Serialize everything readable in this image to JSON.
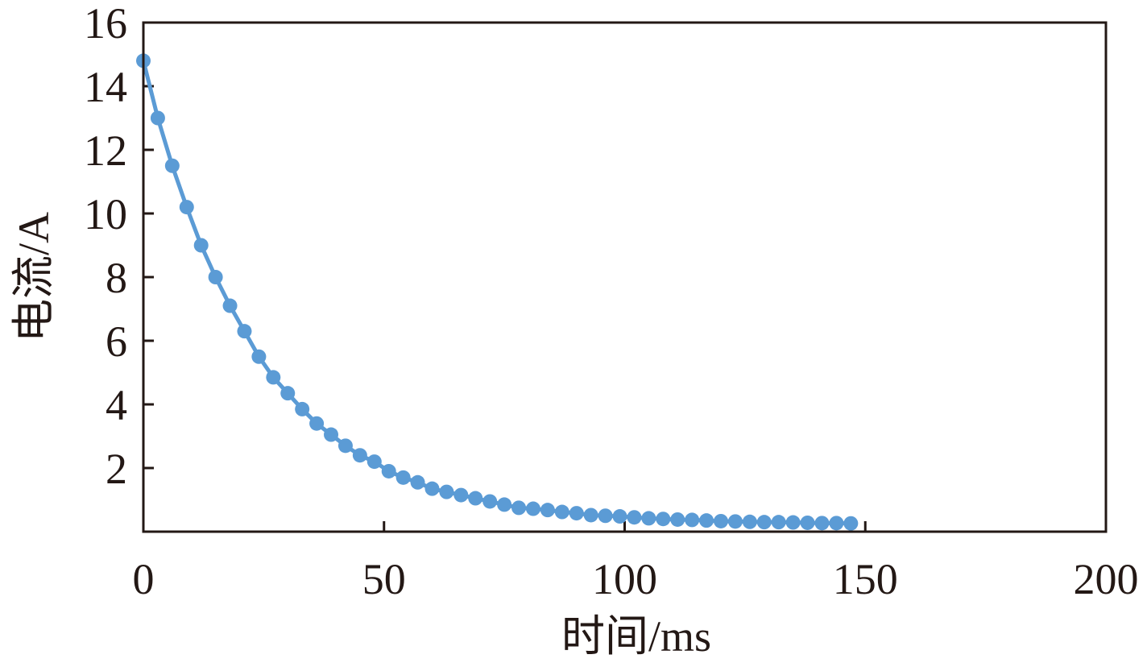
{
  "chart_data": {
    "type": "line",
    "xlabel": "时间/ms",
    "ylabel": "电流/A",
    "xlim": [
      0,
      200
    ],
    "ylim": [
      0,
      16
    ],
    "x_ticks": [
      0,
      50,
      100,
      150,
      200
    ],
    "y_ticks": [
      2,
      4,
      6,
      8,
      10,
      12,
      14,
      16
    ],
    "grid": false,
    "legend": "none",
    "colors": {
      "series": "#5B9BD5",
      "axis": "#231815"
    },
    "series": [
      {
        "x": [
          0,
          3,
          6,
          9,
          12,
          15,
          18,
          21,
          24,
          27,
          30,
          33,
          36,
          39,
          42,
          45,
          48,
          51,
          54,
          57,
          60,
          63,
          66,
          69,
          72,
          75,
          78,
          81,
          84,
          87,
          90,
          93,
          96,
          99,
          102,
          105,
          108,
          111,
          114,
          117,
          120,
          123,
          126,
          129,
          132,
          135,
          138,
          141,
          144,
          147
        ],
        "y": [
          14.8,
          13.0,
          11.5,
          10.2,
          9.0,
          8.0,
          7.1,
          6.3,
          5.5,
          4.85,
          4.35,
          3.85,
          3.4,
          3.05,
          2.7,
          2.4,
          2.2,
          1.9,
          1.7,
          1.55,
          1.35,
          1.25,
          1.15,
          1.05,
          0.95,
          0.85,
          0.75,
          0.72,
          0.68,
          0.62,
          0.58,
          0.52,
          0.5,
          0.48,
          0.45,
          0.42,
          0.4,
          0.38,
          0.37,
          0.35,
          0.33,
          0.32,
          0.31,
          0.3,
          0.3,
          0.29,
          0.28,
          0.27,
          0.27,
          0.26
        ]
      }
    ]
  }
}
